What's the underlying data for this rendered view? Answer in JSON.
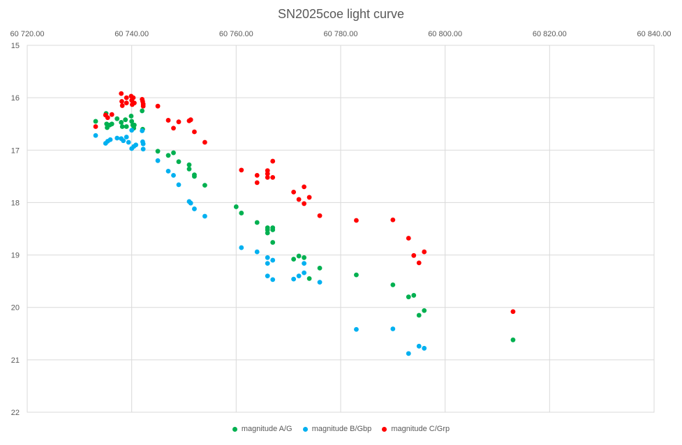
{
  "chart_data": {
    "type": "scatter",
    "title": "SN2025coe light curve",
    "xlabel": "",
    "ylabel": "",
    "xlim": [
      60720,
      60840
    ],
    "ylim": [
      15,
      22
    ],
    "y_inverted": true,
    "x_axis_position": "top",
    "grid": true,
    "legend_position": "bottom",
    "x_tick_labels": [
      "60 720.00",
      "60 740.00",
      "60 760.00",
      "60 780.00",
      "60 800.00",
      "60 820.00",
      "60 840.00"
    ],
    "x_ticks": [
      60720,
      60740,
      60760,
      60780,
      60800,
      60820,
      60840
    ],
    "y_tick_labels": [
      "15",
      "16",
      "17",
      "18",
      "19",
      "20",
      "21",
      "22"
    ],
    "y_ticks": [
      15,
      16,
      17,
      18,
      19,
      20,
      21,
      22
    ],
    "series": [
      {
        "name": "magnitude A/G",
        "color": "#00b050",
        "points": [
          [
            60733.1,
            16.45
          ],
          [
            60735.1,
            16.3
          ],
          [
            60735.2,
            16.5
          ],
          [
            60735.3,
            16.57
          ],
          [
            60735.8,
            16.52
          ],
          [
            60736.2,
            16.5
          ],
          [
            60737.2,
            16.4
          ],
          [
            60738.0,
            16.47
          ],
          [
            60738.2,
            16.55
          ],
          [
            60738.8,
            16.42
          ],
          [
            60739.0,
            16.55
          ],
          [
            60739.9,
            16.35
          ],
          [
            60740.0,
            16.45
          ],
          [
            60740.2,
            16.52
          ],
          [
            60740.5,
            16.52
          ],
          [
            60740.4,
            16.58
          ],
          [
            60742.0,
            16.25
          ],
          [
            60742.1,
            16.6
          ],
          [
            60745.0,
            17.02
          ],
          [
            60747.0,
            17.1
          ],
          [
            60748.0,
            17.05
          ],
          [
            60749.0,
            17.22
          ],
          [
            60751.0,
            17.28
          ],
          [
            60751.0,
            17.36
          ],
          [
            60752.0,
            17.47
          ],
          [
            60752.0,
            17.5
          ],
          [
            60754.0,
            17.67
          ],
          [
            60760.0,
            18.08
          ],
          [
            60761.0,
            18.2
          ],
          [
            60764.0,
            18.38
          ],
          [
            60766.0,
            18.48
          ],
          [
            60766.0,
            18.52
          ],
          [
            60766.0,
            18.58
          ],
          [
            60767.0,
            18.48
          ],
          [
            60767.0,
            18.52
          ],
          [
            60767.0,
            18.76
          ],
          [
            60771.0,
            19.08
          ],
          [
            60772.0,
            19.02
          ],
          [
            60773.0,
            19.05
          ],
          [
            60774.0,
            19.45
          ],
          [
            60776.0,
            19.25
          ],
          [
            60783.0,
            19.38
          ],
          [
            60790.0,
            19.57
          ],
          [
            60793.0,
            19.8
          ],
          [
            60794.0,
            19.77
          ],
          [
            60795.0,
            20.15
          ],
          [
            60796.0,
            20.06
          ],
          [
            60813.0,
            20.62
          ]
        ]
      },
      {
        "name": "magnitude B/Gbp",
        "color": "#00b0f0",
        "points": [
          [
            60733.1,
            16.72
          ],
          [
            60735.0,
            16.87
          ],
          [
            60735.4,
            16.83
          ],
          [
            60735.9,
            16.8
          ],
          [
            60737.2,
            16.77
          ],
          [
            60738.0,
            16.78
          ],
          [
            60738.4,
            16.82
          ],
          [
            60739.0,
            16.75
          ],
          [
            60739.4,
            16.85
          ],
          [
            60740.0,
            16.62
          ],
          [
            60740.0,
            16.97
          ],
          [
            60740.4,
            16.93
          ],
          [
            60740.8,
            16.9
          ],
          [
            60742.0,
            16.63
          ],
          [
            60742.1,
            16.84
          ],
          [
            60742.2,
            16.88
          ],
          [
            60742.2,
            16.98
          ],
          [
            60745.0,
            17.2
          ],
          [
            60747.0,
            17.4
          ],
          [
            60748.0,
            17.48
          ],
          [
            60749.0,
            17.66
          ],
          [
            60751.0,
            17.98
          ],
          [
            60751.3,
            18.01
          ],
          [
            60752.0,
            18.12
          ],
          [
            60754.0,
            18.26
          ],
          [
            60761.0,
            18.86
          ],
          [
            60764.0,
            18.94
          ],
          [
            60766.0,
            19.05
          ],
          [
            60766.0,
            19.16
          ],
          [
            60767.0,
            19.1
          ],
          [
            60766.0,
            19.4
          ],
          [
            60767.0,
            19.47
          ],
          [
            60771.0,
            19.46
          ],
          [
            60772.0,
            19.4
          ],
          [
            60773.0,
            19.16
          ],
          [
            60773.0,
            19.34
          ],
          [
            60776.0,
            19.52
          ],
          [
            60783.0,
            20.42
          ],
          [
            60790.0,
            20.41
          ],
          [
            60793.0,
            20.88
          ],
          [
            60795.0,
            20.74
          ],
          [
            60796.0,
            20.78
          ]
        ]
      },
      {
        "name": "magnitude C/Grp",
        "color": "#ff0000",
        "points": [
          [
            60733.1,
            16.55
          ],
          [
            60735.0,
            16.33
          ],
          [
            60735.4,
            16.38
          ],
          [
            60736.2,
            16.32
          ],
          [
            60738.0,
            15.92
          ],
          [
            60738.1,
            16.07
          ],
          [
            60738.2,
            16.15
          ],
          [
            60739.0,
            16.0
          ],
          [
            60739.0,
            16.1
          ],
          [
            60739.9,
            15.97
          ],
          [
            60740.0,
            16.05
          ],
          [
            60740.1,
            16.13
          ],
          [
            60740.3,
            16.0
          ],
          [
            60740.5,
            16.1
          ],
          [
            60742.0,
            16.03
          ],
          [
            60742.1,
            16.07
          ],
          [
            60742.2,
            16.12
          ],
          [
            60742.2,
            16.16
          ],
          [
            60745.0,
            16.16
          ],
          [
            60747.0,
            16.43
          ],
          [
            60748.0,
            16.58
          ],
          [
            60749.0,
            16.46
          ],
          [
            60751.0,
            16.44
          ],
          [
            60751.3,
            16.42
          ],
          [
            60752.0,
            16.65
          ],
          [
            60754.0,
            16.85
          ],
          [
            60761.0,
            17.38
          ],
          [
            60764.0,
            17.48
          ],
          [
            60764.0,
            17.62
          ],
          [
            60766.0,
            17.39
          ],
          [
            60766.0,
            17.45
          ],
          [
            60766.0,
            17.52
          ],
          [
            60767.0,
            17.21
          ],
          [
            60767.0,
            17.52
          ],
          [
            60771.0,
            17.8
          ],
          [
            60772.0,
            17.94
          ],
          [
            60773.0,
            17.7
          ],
          [
            60773.0,
            18.02
          ],
          [
            60774.0,
            17.9
          ],
          [
            60776.0,
            18.25
          ],
          [
            60783.0,
            18.34
          ],
          [
            60790.0,
            18.33
          ],
          [
            60793.0,
            18.68
          ],
          [
            60794.0,
            19.01
          ],
          [
            60795.0,
            19.15
          ],
          [
            60796.0,
            18.94
          ],
          [
            60813.0,
            20.08
          ]
        ]
      }
    ]
  }
}
